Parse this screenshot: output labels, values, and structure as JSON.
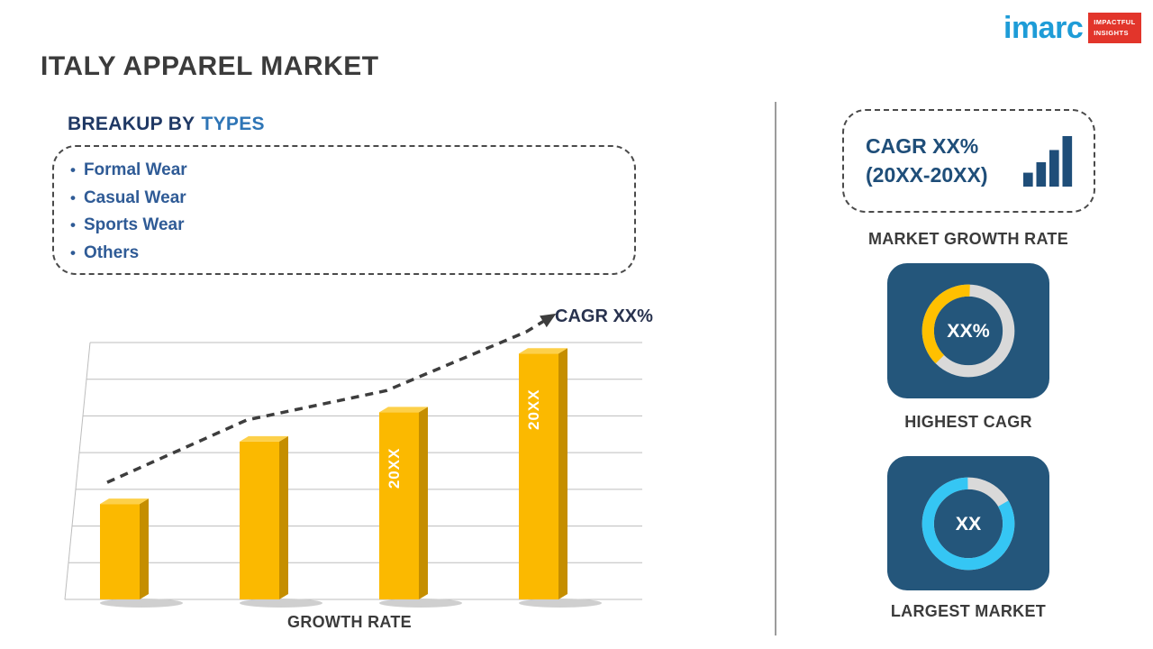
{
  "logo": {
    "brand": "imarc",
    "tagline_line1": "IMPACTFUL",
    "tagline_line2": "INSIGHTS"
  },
  "title": "ITALY APPAREL MARKET",
  "breakup": {
    "heading_prefix": "BREAKUP BY",
    "heading_highlight": "TYPES",
    "items": [
      "Formal Wear",
      "Casual Wear",
      "Sports Wear",
      "Others"
    ]
  },
  "chart_data": [
    {
      "type": "bar",
      "categories": [
        "",
        "",
        "20XX",
        "20XX"
      ],
      "values": [
        26,
        43,
        51,
        67
      ],
      "bar_labels": [
        "",
        "",
        "20XX",
        "20XX"
      ],
      "title": "",
      "xlabel": "GROWTH RATE",
      "ylabel": "",
      "ylim": [
        0,
        70
      ],
      "grid": true,
      "legend": "none",
      "annotation": "CAGR XX%",
      "trend": "dashed ascending arrow over bars",
      "bar_color": "#FBB900",
      "bar_side_color": "#C58E00",
      "bar_top_color": "#FDD04A"
    },
    {
      "type": "pie",
      "subtype": "donut",
      "label": "HIGHEST CAGR",
      "center_text": "XX%",
      "slices": [
        {
          "name": "highlight",
          "fraction": 0.38,
          "color": "#FFC000"
        },
        {
          "name": "remainder",
          "fraction": 0.62,
          "color": "#D9D9D9"
        }
      ]
    },
    {
      "type": "pie",
      "subtype": "donut",
      "label": "LARGEST MARKET",
      "center_text": "XX",
      "slices": [
        {
          "name": "highlight",
          "fraction": 0.83,
          "color": "#35C6F4"
        },
        {
          "name": "remainder",
          "fraction": 0.17,
          "color": "#D9D9D9"
        }
      ]
    }
  ],
  "right_panel": {
    "cagr_card": {
      "line1": "CAGR XX%",
      "line2": "(20XX-20XX)"
    },
    "market_growth_label": "MARKET GROWTH RATE"
  }
}
